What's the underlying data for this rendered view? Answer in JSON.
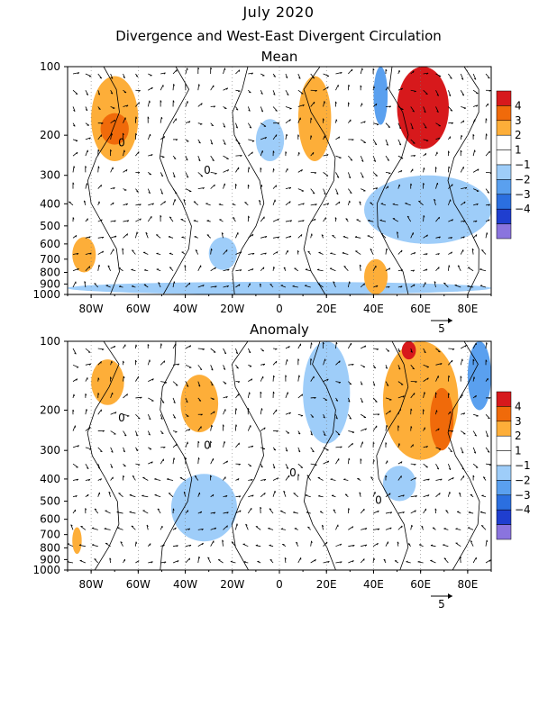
{
  "title": "July 2020",
  "subtitle": "Divergence and West-East Divergent Circulation",
  "chart_data": [
    {
      "type": "heatmap",
      "panel_title": "Mean",
      "x_ticks": [
        "80W",
        "60W",
        "40W",
        "20W",
        "0",
        "20E",
        "40E",
        "60E",
        "80E"
      ],
      "x_tick_lon": [
        -80,
        -60,
        -40,
        -20,
        0,
        20,
        40,
        60,
        80
      ],
      "xlim": [
        -90,
        90
      ],
      "y_ticks": [
        "100",
        "200",
        "300",
        "400",
        "500",
        "600",
        "700",
        "800",
        "900",
        "1000"
      ],
      "y_tick_values": [
        100,
        200,
        300,
        400,
        500,
        600,
        700,
        800,
        900,
        1000
      ],
      "ylim": [
        1000,
        100
      ],
      "y_scale": "log",
      "colorbar": {
        "labels": [
          "4",
          "3",
          "2",
          "1",
          "−1",
          "−2",
          "−3",
          "−4"
        ],
        "colors": [
          "#d7191c",
          "#f06a0a",
          "#fdae39",
          "#ffffff",
          "#ffffff",
          "#9ecdf9",
          "#5aa0ef",
          "#2b6fe0",
          "#1f3ecf",
          "#8a74de"
        ]
      },
      "vector_reference": "5",
      "contour_labels": [
        "0",
        "0"
      ],
      "regions": [
        {
          "value": 2,
          "lon": [
            -80,
            -60
          ],
          "p": [
            110,
            260
          ]
        },
        {
          "value": 3,
          "lon": [
            -76,
            -64
          ],
          "p": [
            160,
            220
          ]
        },
        {
          "value": 1,
          "lon": [
            -88,
            -78
          ],
          "p": [
            560,
            800
          ]
        },
        {
          "value": -1,
          "lon": [
            -30,
            -18
          ],
          "p": [
            560,
            780
          ]
        },
        {
          "value": -1,
          "lon": [
            -10,
            2
          ],
          "p": [
            170,
            260
          ]
        },
        {
          "value": 2,
          "lon": [
            8,
            22
          ],
          "p": [
            110,
            260
          ]
        },
        {
          "value": 4,
          "lon": [
            50,
            72
          ],
          "p": [
            100,
            230
          ]
        },
        {
          "value": -1,
          "lon": [
            36,
            90
          ],
          "p": [
            300,
            600
          ]
        },
        {
          "value": -2,
          "lon": [
            40,
            46
          ],
          "p": [
            100,
            180
          ]
        },
        {
          "value": -1,
          "lon": [
            -90,
            90
          ],
          "p": [
            880,
            1000
          ]
        },
        {
          "value": 2,
          "lon": [
            36,
            46
          ],
          "p": [
            700,
            1000
          ]
        }
      ]
    },
    {
      "type": "heatmap",
      "panel_title": "Anomaly",
      "x_ticks": [
        "80W",
        "60W",
        "40W",
        "20W",
        "0",
        "20E",
        "40E",
        "60E",
        "80E"
      ],
      "x_tick_lon": [
        -80,
        -60,
        -40,
        -20,
        0,
        20,
        40,
        60,
        80
      ],
      "xlim": [
        -90,
        90
      ],
      "y_ticks": [
        "100",
        "200",
        "300",
        "400",
        "500",
        "600",
        "700",
        "800",
        "900",
        "1000"
      ],
      "y_tick_values": [
        100,
        200,
        300,
        400,
        500,
        600,
        700,
        800,
        900,
        1000
      ],
      "ylim": [
        1000,
        100
      ],
      "y_scale": "log",
      "colorbar": {
        "labels": [
          "4",
          "3",
          "2",
          "1",
          "−1",
          "−2",
          "−3",
          "−4"
        ],
        "colors": [
          "#d7191c",
          "#f06a0a",
          "#fdae39",
          "#ffffff",
          "#ffffff",
          "#9ecdf9",
          "#5aa0ef",
          "#2b6fe0",
          "#1f3ecf",
          "#8a74de"
        ]
      },
      "vector_reference": "5",
      "contour_labels": [
        "0",
        "0",
        "0",
        "0"
      ],
      "regions": [
        {
          "value": 1,
          "lon": [
            -80,
            -66
          ],
          "p": [
            120,
            190
          ]
        },
        {
          "value": 1,
          "lon": [
            -42,
            -26
          ],
          "p": [
            140,
            250
          ]
        },
        {
          "value": -1,
          "lon": [
            -46,
            -18
          ],
          "p": [
            380,
            750
          ]
        },
        {
          "value": -1,
          "lon": [
            10,
            30
          ],
          "p": [
            100,
            280
          ]
        },
        {
          "value": 2,
          "lon": [
            44,
            76
          ],
          "p": [
            100,
            330
          ]
        },
        {
          "value": 3,
          "lon": [
            64,
            74
          ],
          "p": [
            160,
            300
          ]
        },
        {
          "value": 4,
          "lon": [
            52,
            58
          ],
          "p": [
            100,
            120
          ]
        },
        {
          "value": -2,
          "lon": [
            80,
            90
          ],
          "p": [
            100,
            200
          ]
        },
        {
          "value": -1,
          "lon": [
            44,
            58
          ],
          "p": [
            350,
            500
          ]
        },
        {
          "value": 1,
          "lon": [
            -88,
            -84
          ],
          "p": [
            650,
            850
          ]
        }
      ]
    }
  ]
}
